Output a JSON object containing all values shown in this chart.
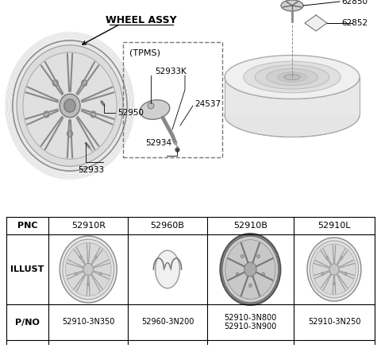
{
  "bg_color": "#ffffff",
  "text_color": "#000000",
  "diagram_labels": {
    "wheel_assy": "WHEEL ASSY",
    "tpms": "(TPMS)",
    "p52950": "52950",
    "p52933": "52933",
    "p52933k": "52933K",
    "p24537": "24537",
    "p52934": "52934",
    "p62850": "62850",
    "p62852": "62852"
  },
  "table": {
    "headers": [
      "PNC",
      "52910R",
      "52960B",
      "52910B",
      "52910L"
    ],
    "row_labels": [
      "PNC",
      "ILLUST",
      "P/NO"
    ],
    "pno": [
      "52910-3N350",
      "52960-3N200",
      "52910-3N800\n52910-3N900",
      "52910-3N250"
    ]
  }
}
